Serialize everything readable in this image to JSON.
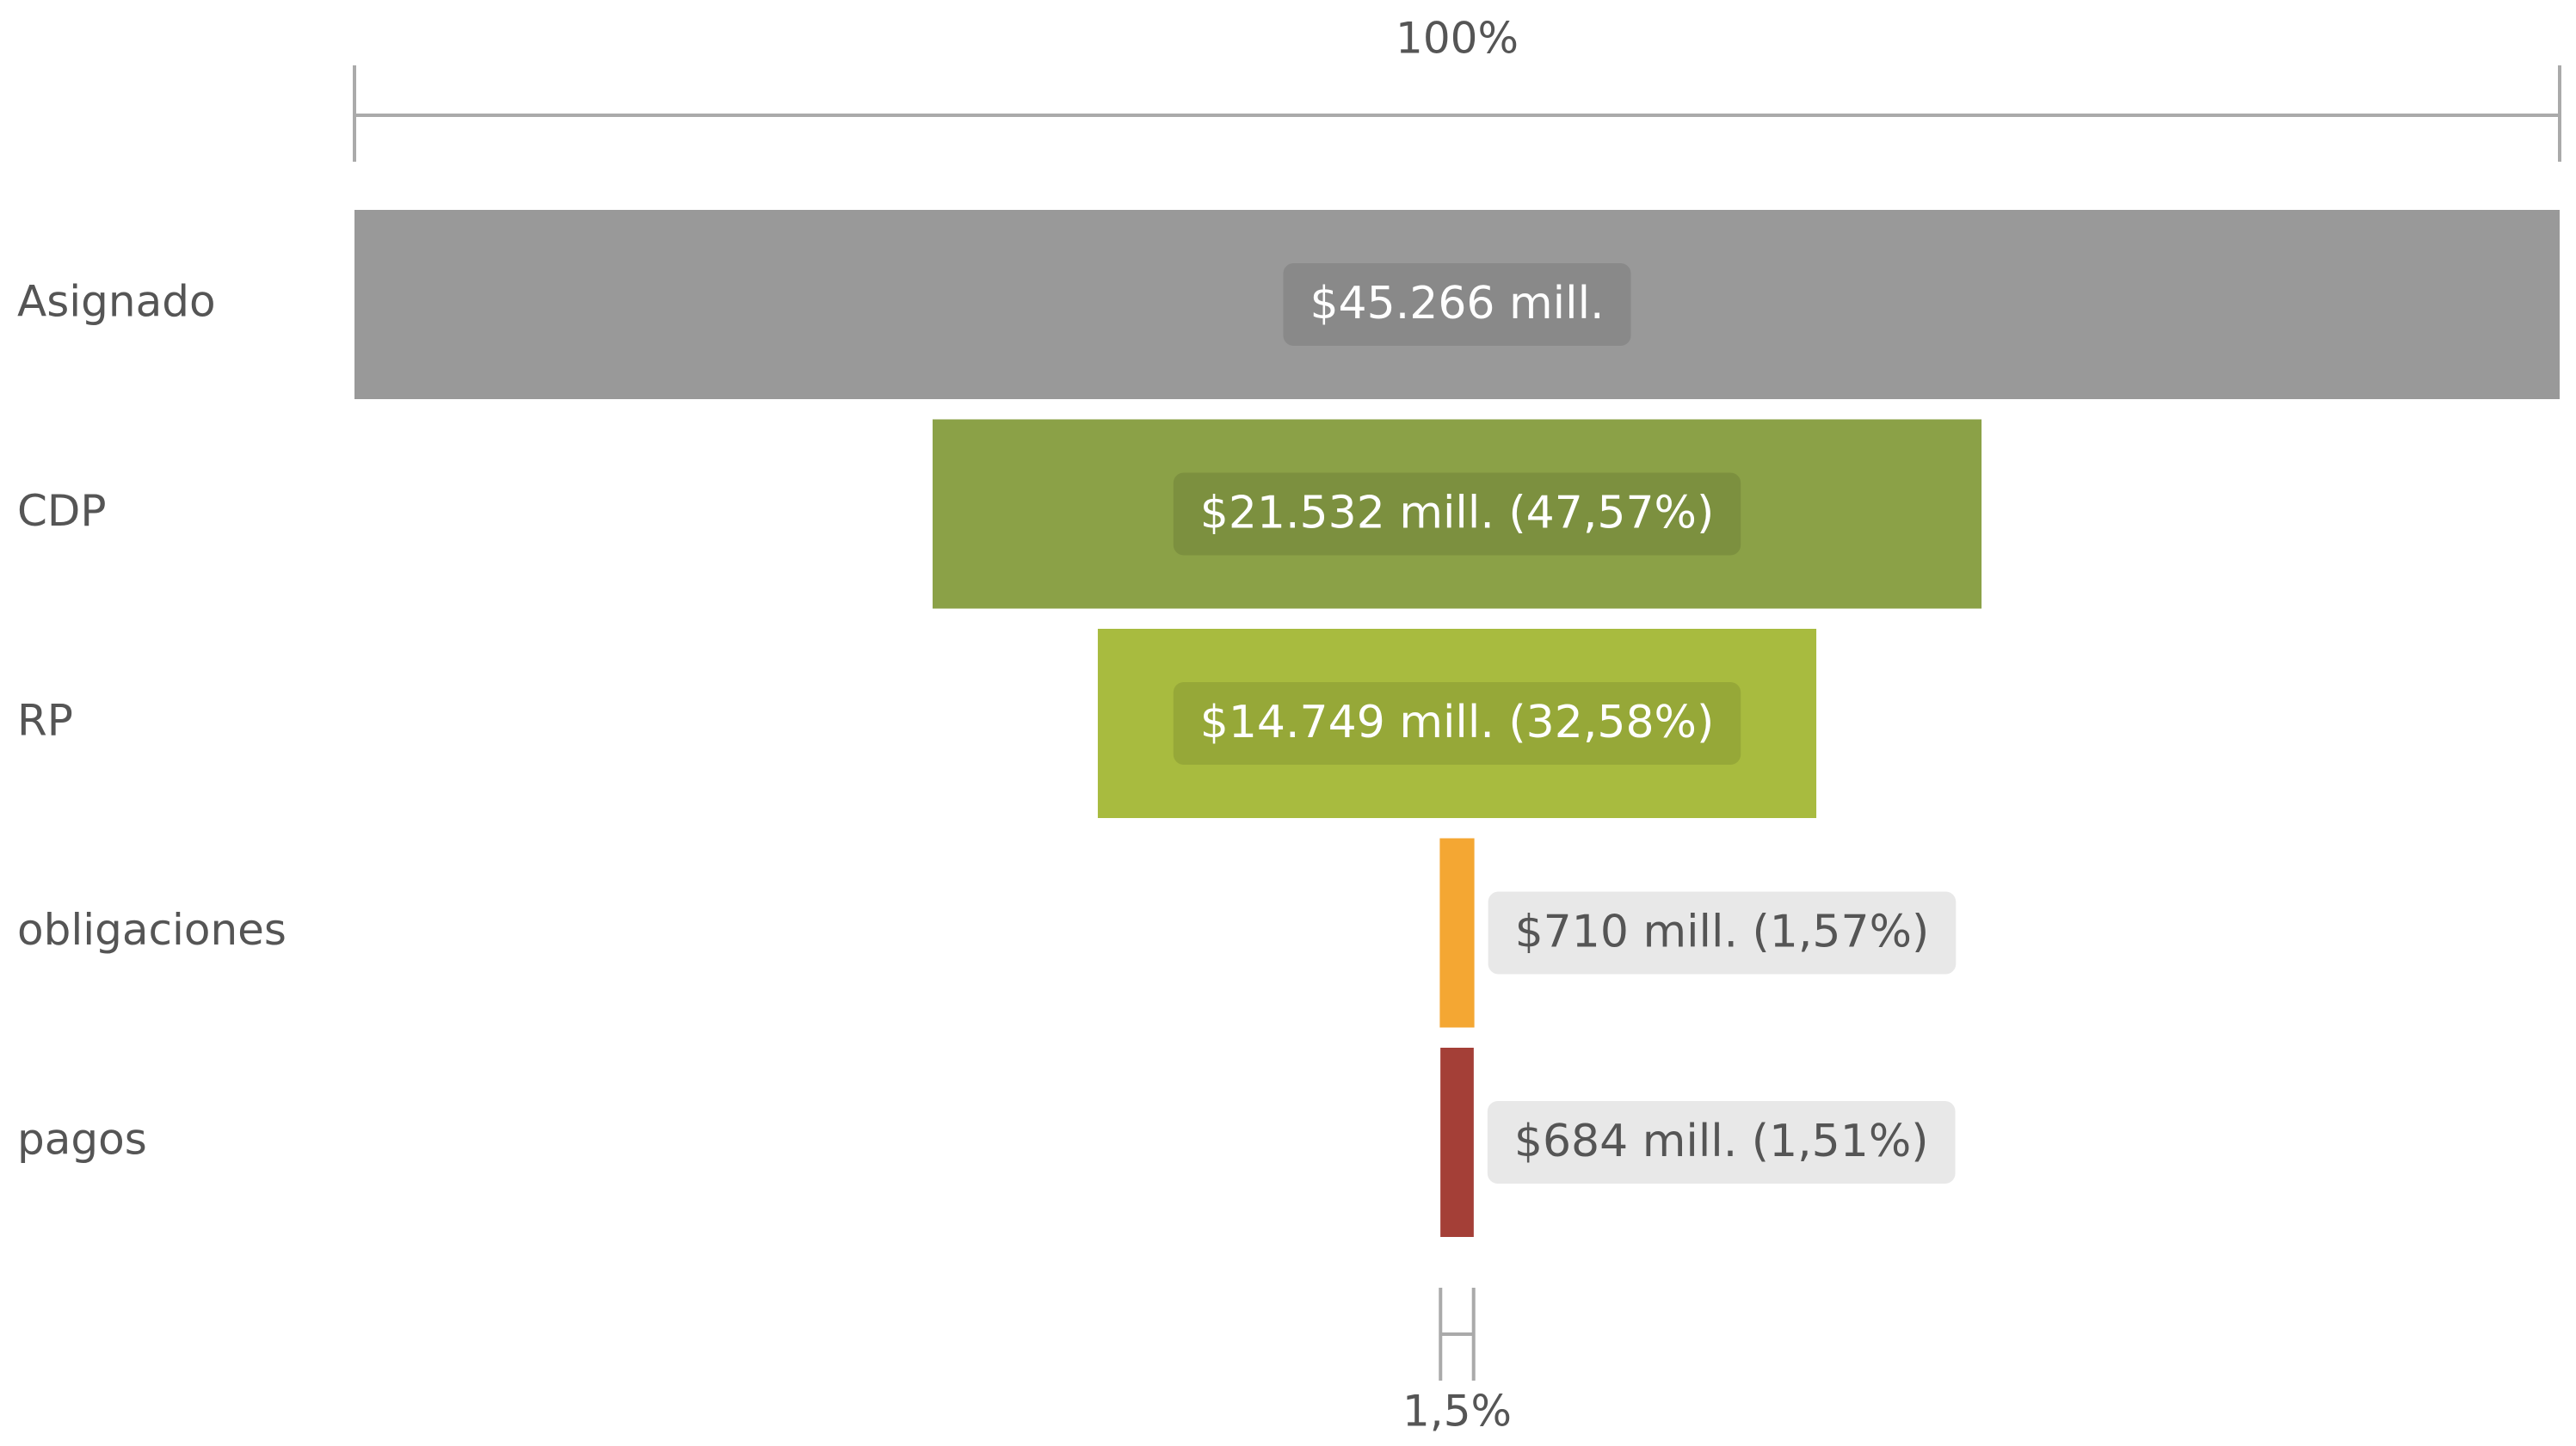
{
  "chart_data": {
    "type": "funnel",
    "categories": [
      "Asignado",
      "CDP",
      "RP",
      "obligaciones",
      "pagos"
    ],
    "values": [
      45266,
      21532,
      14749,
      710,
      684
    ],
    "value_labels": [
      "$45.266 mill.",
      "$21.532 mill. (47,57%)",
      "$14.749 mill. (32,58%)",
      "$710 mill. (1,57%)",
      "$684 mill. (1,51%)"
    ],
    "colors": [
      "#999999",
      "#8ba147",
      "#a8bb3f",
      "#f4a733",
      "#a43f37"
    ],
    "top_scale": {
      "value": 100,
      "label": "100%"
    },
    "bottom_scale": {
      "value": 1.5,
      "label": "1,5%"
    }
  }
}
